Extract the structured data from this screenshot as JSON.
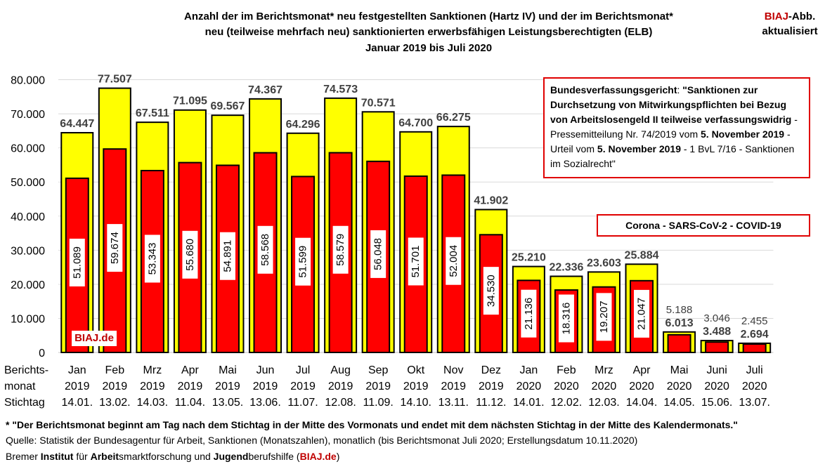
{
  "header": {
    "title_line1": "Anzahl der im Berichtsmonat* neu festgestellten Sanktionen (Hartz IV) und der im Berichtsmonat*",
    "title_line2": "neu (teilweise mehrfach neu) sanktionierten erwerbsfähigen Leistungsberechtigten (ELB)",
    "title_line3": "Januar 2019 bis Juli 2020",
    "brand_red": "BIAJ",
    "brand_rest": "-Abb.",
    "brand_line2": "aktualisiert"
  },
  "court_note": {
    "court": "Bundesverfassungsgericht",
    "colon": ": ",
    "quote": "\"Sanktionen zur Durchsetzung von Mitwirkungspflichten bei Bezug von Arbeitslosengeld II teilweise verfassungswidrig",
    "press": " - Pressemitteilung Nr. 74/2019 vom ",
    "press_date": "5. November 2019",
    "verdict": " - Urteil vom ",
    "verdict_date": "5. November 2019",
    "tail": " - 1 BvL 7/16 - Sanktionen im Sozialrecht\""
  },
  "corona_note": "Corona - SARS-CoV-2 - COVID-19",
  "watermark": "BIAJ.de",
  "footer": {
    "footnote": "* \"Der Berichtsmonat beginnt am Tag nach dem Stichtag in der Mitte des Vormonats und endet mit dem nächsten Stichtag in der Mitte des Kalendermonats.\"",
    "source": "Quelle: Statistik der Bundesagentur für Arbeit, Sanktionen (Monatszahlen), monatlich (bis Berichtsmonat Juli 2020; Erstellungsdatum 10.11.2020)",
    "org_1": "Bremer ",
    "org_2": "Institut",
    "org_3": " für ",
    "org_4": "Arbeit",
    "org_5": "smarktforschung und ",
    "org_6": "Jugend",
    "org_7": "berufshilfe (",
    "org_8": "BIAJ.de",
    "org_9": ")"
  },
  "chart_data": {
    "type": "bar",
    "colors": {
      "sanctions": "#ffff00",
      "elb": "#ff0000",
      "outline": "#000000",
      "grid": "#d9d9d9"
    },
    "ylim": [
      0,
      80000
    ],
    "yticks": [
      0,
      10000,
      20000,
      30000,
      40000,
      50000,
      60000,
      70000,
      80000
    ],
    "ytick_labels": [
      "0",
      "10.000",
      "20.000",
      "30.000",
      "40.000",
      "50.000",
      "60.000",
      "70.000",
      "80.000"
    ],
    "row_labels": [
      "Berichts-",
      "monat",
      "Stichtag"
    ],
    "categories": [
      {
        "month": "Jan",
        "year": "2019",
        "date": "14.01."
      },
      {
        "month": "Feb",
        "year": "2019",
        "date": "13.02."
      },
      {
        "month": "Mrz",
        "year": "2019",
        "date": "14.03."
      },
      {
        "month": "Apr",
        "year": "2019",
        "date": "11.04."
      },
      {
        "month": "Mai",
        "year": "2019",
        "date": "13.05."
      },
      {
        "month": "Jun",
        "year": "2019",
        "date": "13.06."
      },
      {
        "month": "Jul",
        "year": "2019",
        "date": "11.07."
      },
      {
        "month": "Aug",
        "year": "2019",
        "date": "12.08."
      },
      {
        "month": "Sep",
        "year": "2019",
        "date": "11.09."
      },
      {
        "month": "Okt",
        "year": "2019",
        "date": "14.10."
      },
      {
        "month": "Nov",
        "year": "2019",
        "date": "13.11."
      },
      {
        "month": "Dez",
        "year": "2019",
        "date": "11.12."
      },
      {
        "month": "Jan",
        "year": "2020",
        "date": "14.01."
      },
      {
        "month": "Feb",
        "year": "2020",
        "date": "12.02."
      },
      {
        "month": "Mrz",
        "year": "2020",
        "date": "12.03."
      },
      {
        "month": "Apr",
        "year": "2020",
        "date": "14.04."
      },
      {
        "month": "Mai",
        "year": "2020",
        "date": "14.05."
      },
      {
        "month": "Juni",
        "year": "2020",
        "date": "15.06."
      },
      {
        "month": "Juli",
        "year": "2020",
        "date": "13.07."
      }
    ],
    "series": [
      {
        "name": "neu festgestellte Sanktionen",
        "values": [
          64447,
          77507,
          67511,
          71095,
          69567,
          74367,
          64296,
          74573,
          70571,
          64700,
          66275,
          41902,
          25210,
          22336,
          23603,
          25884,
          6013,
          3488,
          2694
        ],
        "labels": [
          "64.447",
          "77.507",
          "67.511",
          "71.095",
          "69.567",
          "74.367",
          "64.296",
          "74.573",
          "70.571",
          "64.700",
          "66.275",
          "41.902",
          "25.210",
          "22.336",
          "23.603",
          "25.884",
          "6.013",
          "3.488",
          "2.694"
        ]
      },
      {
        "name": "neu sanktionierte ELB",
        "values": [
          51089,
          59674,
          53343,
          55680,
          54891,
          58568,
          51599,
          58579,
          56048,
          51701,
          52004,
          34530,
          21136,
          18316,
          19207,
          21047,
          5188,
          3046,
          2455
        ],
        "labels": [
          "51.089",
          "59.674",
          "53.343",
          "55.680",
          "54.891",
          "58.568",
          "51.599",
          "58.579",
          "56.048",
          "51.701",
          "52.004",
          "34.530",
          "21.136",
          "18.316",
          "19.207",
          "21.047",
          "5.188",
          "3.046",
          "2.455"
        ]
      }
    ]
  }
}
